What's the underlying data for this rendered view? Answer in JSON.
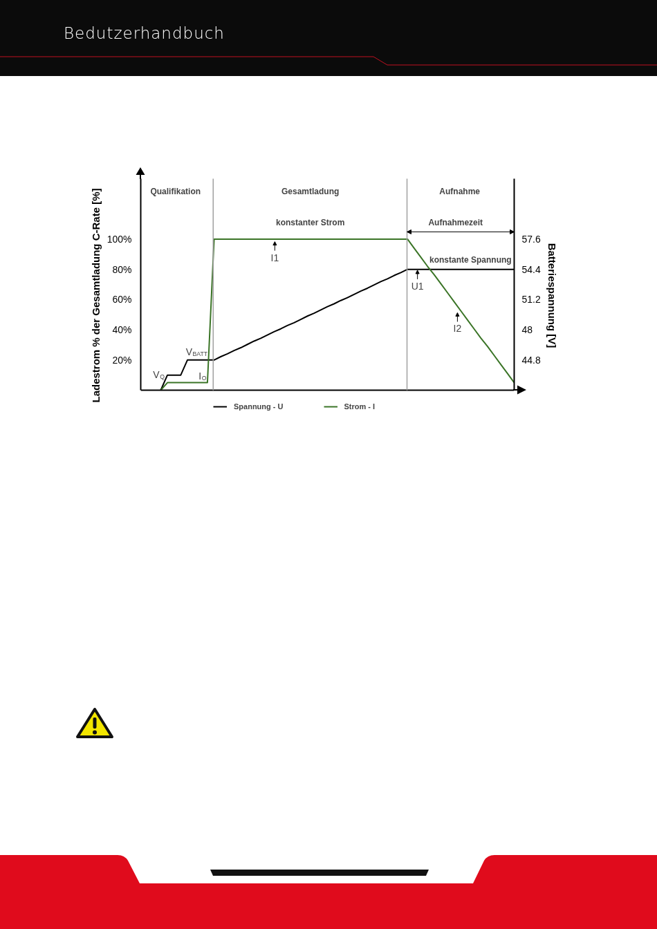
{
  "chart_data": {
    "type": "line",
    "ylabel": "Ladestrom % der Gesamtladung C-Rate [%]",
    "y2label": "Batteriespannung [V]",
    "categories": [
      null,
      null,
      null,
      null,
      null,
      null,
      null,
      null,
      null,
      null,
      null,
      null,
      null,
      null,
      null,
      null,
      null,
      null,
      null,
      null,
      null,
      null,
      null,
      null,
      null,
      null,
      null,
      null,
      null,
      null,
      null,
      null,
      null,
      null,
      null,
      null,
      null,
      null,
      null,
      null,
      null,
      null,
      null,
      null,
      null,
      null,
      null,
      null,
      null,
      null,
      null,
      null,
      null,
      null,
      null,
      null,
      null
    ],
    "ylim": [
      0,
      140
    ],
    "yticks": [
      {
        "value": 20,
        "label": "20%"
      },
      {
        "value": 40,
        "label": "40%"
      },
      {
        "value": 60,
        "label": "60%"
      },
      {
        "value": 80,
        "label": "80%"
      },
      {
        "value": 100,
        "label": "100%"
      }
    ],
    "y2lim": [
      41.6,
      64.0
    ],
    "y2ticks": [
      44.8,
      48,
      51.2,
      54.4,
      57.6
    ],
    "tick_labels": "y",
    "grid": false,
    "legend": "bottom",
    "series": [
      {
        "name": "Spannung - U",
        "color": "#000000",
        "axis": "y2",
        "values": [
          null,
          null,
          null,
          41.6,
          43.2,
          43.2,
          43.2,
          44.8,
          44.8,
          44.8,
          44.8,
          44.8,
          45.15,
          45.45,
          45.8,
          46.1,
          46.45,
          46.8,
          47.1,
          47.45,
          47.8,
          48.1,
          48.45,
          48.75,
          49.1,
          49.45,
          49.75,
          50.1,
          50.45,
          50.75,
          51.1,
          51.4,
          51.75,
          52.1,
          52.4,
          52.75,
          53.1,
          53.4,
          53.75,
          54.05,
          54.4,
          54.4,
          54.4,
          54.4,
          54.4,
          54.4,
          54.4,
          54.4,
          54.4,
          54.4,
          54.4,
          54.4,
          54.4,
          54.4,
          54.4,
          54.4,
          54.4
        ]
      },
      {
        "name": "Strom - I",
        "color": "#3a7426",
        "values": [
          null,
          null,
          null,
          0,
          5,
          5,
          5,
          5,
          5,
          5,
          5,
          100,
          100,
          100,
          100,
          100,
          100,
          100,
          100,
          100,
          100,
          100,
          100,
          100,
          100,
          100,
          100,
          100,
          100,
          100,
          100,
          100,
          100,
          100,
          100,
          100,
          100,
          100,
          100,
          100,
          100,
          94,
          88,
          82,
          76.5,
          70.5,
          64.5,
          58.5,
          52.5,
          46.5,
          40.5,
          34.5,
          29,
          23,
          17,
          11,
          5
        ]
      }
    ],
    "annotations": [
      "Bedutzerhandbuch",
      "Qualifikation",
      "Gesamtladung",
      "Aufnahme",
      "konstanter Strom",
      "Aufnahmezeit",
      "konstante Spannung",
      "I1",
      "U1",
      "I2",
      "V$_{Q}$",
      "V$_{BATT}$",
      "I$_{O}$"
    ]
  }
}
